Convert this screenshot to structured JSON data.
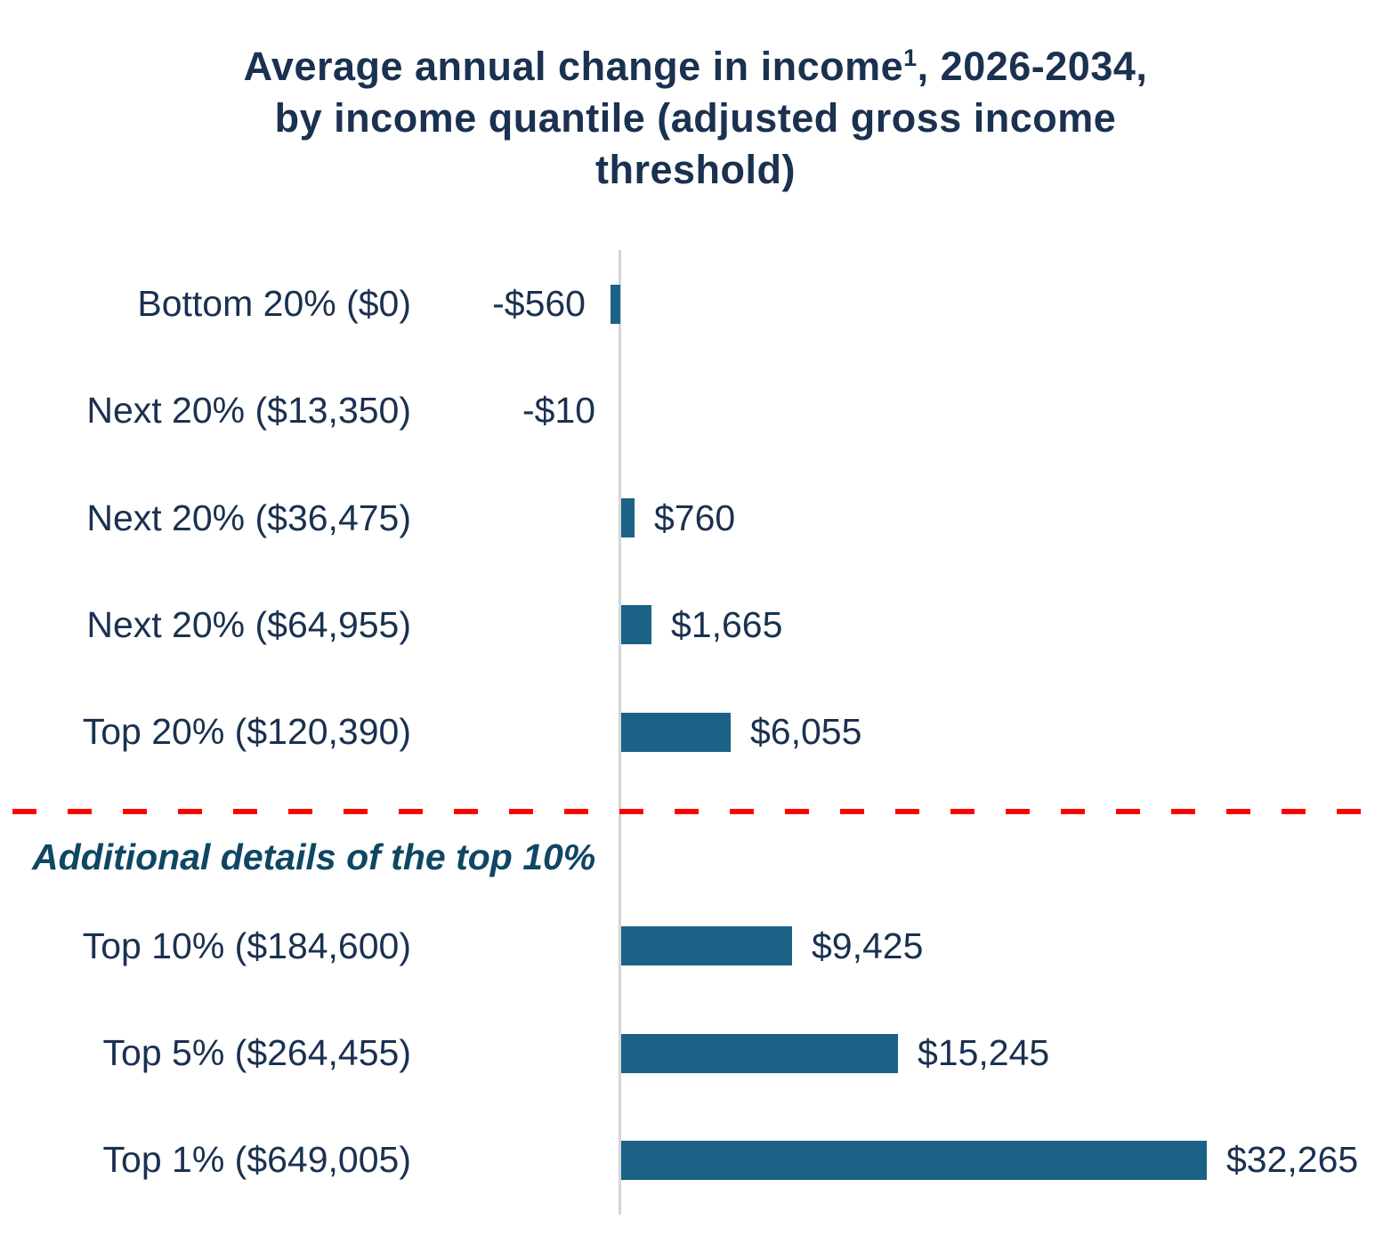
{
  "chart_data": {
    "type": "bar",
    "orientation": "horizontal",
    "title": "Average annual change in income¹, 2026-2034, by income quantile (adjusted gross income threshold)",
    "title_parts": {
      "line1_before_sup": "Average annual change in income",
      "line1_sup": "1",
      "line1_after_sup": ", 2026-2034,",
      "line2": "by income quantile (adjusted gross income",
      "line3": "threshold)"
    },
    "section_divider_label": "Additional details of the top 10%",
    "categories": [
      "Bottom 20% ($0)",
      "Next 20% ($13,350)",
      "Next 20% ($36,475)",
      "Next 20% ($64,955)",
      "Top 20% ($120,390)",
      "Top 10% ($184,600)",
      "Top 5% ($264,455)",
      "Top 1% ($649,005)"
    ],
    "values": [
      -560,
      -10,
      760,
      1665,
      6055,
      9425,
      15245,
      32265
    ],
    "rows": [
      {
        "label": "Bottom 20% ($0)",
        "value": -560,
        "value_label": "-$560",
        "group": "quintiles"
      },
      {
        "label": "Next 20% ($13,350)",
        "value": -10,
        "value_label": "-$10",
        "group": "quintiles"
      },
      {
        "label": "Next 20% ($36,475)",
        "value": 760,
        "value_label": "$760",
        "group": "quintiles"
      },
      {
        "label": "Next 20% ($64,955)",
        "value": 1665,
        "value_label": "$1,665",
        "group": "quintiles"
      },
      {
        "label": "Top 20% ($120,390)",
        "value": 6055,
        "value_label": "$6,055",
        "group": "quintiles"
      },
      {
        "label": "Top 10% ($184,600)",
        "value": 9425,
        "value_label": "$9,425",
        "group": "top10-detail"
      },
      {
        "label": "Top 5% ($264,455)",
        "value": 15245,
        "value_label": "$15,245",
        "group": "top10-detail"
      },
      {
        "label": "Top 1% ($649,005)",
        "value": 32265,
        "value_label": "$32,265",
        "group": "top10-detail"
      }
    ],
    "value_axis": {
      "zero_baseline_shown": true,
      "tick_labels_shown": false,
      "range": [
        -560,
        32265
      ]
    },
    "grid": "off",
    "legend": "none",
    "colors": {
      "bar": "#1b6286",
      "text": "#1a3150",
      "zero_axis_line": "#d6d6d6",
      "section_divider": "#fe0000",
      "section_label_text": "#0e4763",
      "background": "#ffffff"
    }
  }
}
